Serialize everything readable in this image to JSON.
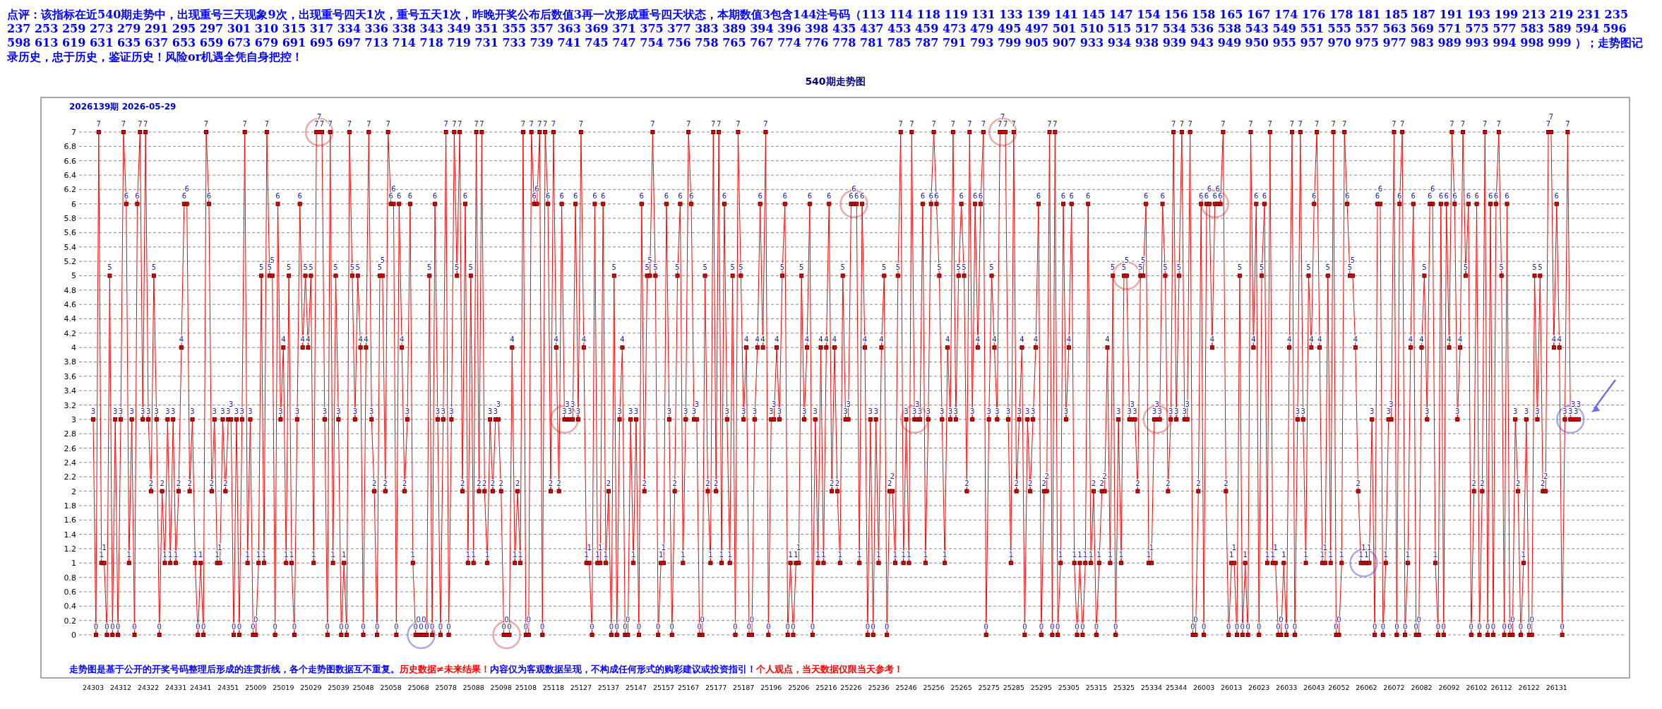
{
  "chart_data": {
    "type": "line",
    "title": "540期走势图",
    "subtitle": "2026139期  2026-05-29",
    "annotations": [
      "点评：该指标在近540期走势中，出现重号三天现象9次，出现重号四天1次，重号五天1次，昨晚开奖公布后数值3再一次形成重号四天状态，本期数值3包含144注号码（113 114 118 119 131 133 139 141 145 147 154 156 158 165 167 174 176 178 181 185 187 191 193 199 213 219 231 235 237 253 259 273 279 291 295 297 301 310 315 317 334 336 338 343 349 351 355 357 363 369 371 375 377 383 389 394 396 398 435 437 453 459 473 479 495 497 501 510 515 517 534 536 538 543 549 551 555 557 563 569 571 575 577 583 589 594 596 598 613 619 631 635 637 653 659 673 679 691 695 697 713 714 718 719 731 733 739 741 745 747 754 756 758 765 767 774 776 778 781 785 787 791 793 799 905 907 933 934 938 939 943 949 950 955 957 970 975 977 983 989 993 994 998 999 ）；走势图记录历史，忠于历史，鉴证历史！风险or机遇全凭自身把控！",
      "走势图是基于公开的开奖号码整理后形成的连贯折线，各个走势图数据互不重复。",
      "历史数据≠未来结果！",
      "内容仅为客观数据呈现，不构成任何形式的购彩建议或投资指引！",
      "个人观点，当天数据仅限当天参考！"
    ],
    "categories": [
      "24303",
      null,
      null,
      null,
      null,
      null,
      null,
      null,
      null,
      null,
      "24312",
      null,
      null,
      null,
      null,
      null,
      null,
      null,
      null,
      null,
      "24322",
      null,
      null,
      null,
      null,
      null,
      null,
      null,
      null,
      null,
      "24331",
      null,
      null,
      null,
      null,
      null,
      null,
      null,
      null,
      "24341",
      null,
      null,
      null,
      null,
      null,
      null,
      null,
      null,
      null,
      "24351",
      null,
      null,
      null,
      null,
      null,
      null,
      null,
      null,
      null,
      "25009",
      null,
      null,
      null,
      null,
      null,
      null,
      null,
      null,
      null,
      "25019",
      null,
      null,
      null,
      null,
      null,
      null,
      null,
      null,
      null,
      "25029",
      null,
      null,
      null,
      null,
      null,
      null,
      null,
      null,
      null,
      "25039",
      null,
      null,
      null,
      null,
      null,
      null,
      null,
      null,
      "25048",
      null,
      null,
      null,
      null,
      null,
      null,
      null,
      null,
      null,
      "25058",
      null,
      null,
      null,
      null,
      null,
      null,
      null,
      null,
      null,
      "25068",
      null,
      null,
      null,
      null,
      null,
      null,
      null,
      null,
      null,
      "25078",
      null,
      null,
      null,
      null,
      null,
      null,
      null,
      null,
      null,
      "25088",
      null,
      null,
      null,
      null,
      null,
      null,
      null,
      null,
      null,
      "25098",
      null,
      null,
      null,
      null,
      null,
      null,
      null,
      null,
      "25108",
      null,
      null,
      null,
      null,
      null,
      null,
      null,
      null,
      null,
      "25118",
      null,
      null,
      null,
      null,
      null,
      null,
      null,
      null,
      null,
      "25127",
      null,
      null,
      null,
      null,
      null,
      null,
      null,
      null,
      null,
      "25137",
      null,
      null,
      null,
      null,
      null,
      null,
      null,
      null,
      null,
      "25147",
      null,
      null,
      null,
      null,
      null,
      null,
      null,
      null,
      null,
      "25157",
      null,
      null,
      null,
      null,
      null,
      null,
      null,
      null,
      "25167",
      null,
      null,
      null,
      null,
      null,
      null,
      null,
      null,
      null,
      "25177",
      null,
      null,
      null,
      null,
      null,
      null,
      null,
      null,
      null,
      "25187",
      null,
      null,
      null,
      null,
      null,
      null,
      null,
      null,
      null,
      "25196",
      null,
      null,
      null,
      null,
      null,
      null,
      null,
      null,
      null,
      "25206",
      null,
      null,
      null,
      null,
      null,
      null,
      null,
      null,
      null,
      "25216",
      null,
      null,
      null,
      null,
      null,
      null,
      null,
      null,
      "25226",
      null,
      null,
      null,
      null,
      null,
      null,
      null,
      null,
      null,
      "25236",
      null,
      null,
      null,
      null,
      null,
      null,
      null,
      null,
      null,
      "25246",
      null,
      null,
      null,
      null,
      null,
      null,
      null,
      null,
      null,
      "25256",
      null,
      null,
      null,
      null,
      null,
      null,
      null,
      null,
      null,
      "25265",
      null,
      null,
      null,
      null,
      null,
      null,
      null,
      null,
      null,
      "25275",
      null,
      null,
      null,
      null,
      null,
      null,
      null,
      null,
      "25285",
      null,
      null,
      null,
      null,
      null,
      null,
      null,
      null,
      null,
      "25295",
      null,
      null,
      null,
      null,
      null,
      null,
      null,
      null,
      null,
      "25305",
      null,
      null,
      null,
      null,
      null,
      null,
      null,
      null,
      null,
      "25315",
      null,
      null,
      null,
      null,
      null,
      null,
      null,
      null,
      null,
      "25325",
      null,
      null,
      null,
      null,
      null,
      null,
      null,
      null,
      null,
      "25334",
      null,
      null,
      null,
      null,
      null,
      null,
      null,
      null,
      "25344",
      null,
      null,
      null,
      null,
      null,
      null,
      null,
      null,
      null,
      "26003",
      null,
      null,
      null,
      null,
      null,
      null,
      null,
      null,
      null,
      "26013",
      null,
      null,
      null,
      null,
      null,
      null,
      null,
      null,
      null,
      "26023",
      null,
      null,
      null,
      null,
      null,
      null,
      null,
      null,
      null,
      "26033",
      null,
      null,
      null,
      null,
      null,
      null,
      null,
      null,
      null,
      "26043",
      null,
      null,
      null,
      null,
      null,
      null,
      null,
      null,
      "26052",
      null,
      null,
      null,
      null,
      null,
      null,
      null,
      null,
      null,
      "26062",
      null,
      null,
      null,
      null,
      null,
      null,
      null,
      null,
      null,
      "26072",
      null,
      null,
      null,
      null,
      null,
      null,
      null,
      null,
      null,
      "26082",
      null,
      null,
      null,
      null,
      null,
      null,
      null,
      null,
      null,
      "26092",
      null,
      null,
      null,
      null,
      null,
      null,
      null,
      null,
      null,
      "26102",
      null,
      null,
      null,
      null,
      null,
      null,
      null,
      null,
      "26112",
      null,
      null,
      null,
      null,
      null,
      null,
      null,
      null,
      null,
      "26122",
      null,
      null,
      null,
      null,
      null,
      null,
      null,
      null,
      null,
      "26131",
      null,
      null,
      null,
      null,
      null,
      null,
      null,
      null
    ],
    "values": [
      3,
      0,
      7,
      1,
      1,
      0,
      5,
      0,
      3,
      0,
      3,
      7,
      6,
      1,
      3,
      0,
      6,
      7,
      3,
      7,
      3,
      2,
      5,
      3,
      0,
      2,
      1,
      3,
      1,
      3,
      1,
      2,
      4,
      6,
      6,
      2,
      3,
      1,
      0,
      1,
      0,
      7,
      6,
      2,
      3,
      1,
      1,
      3,
      2,
      3,
      3,
      0,
      3,
      0,
      3,
      7,
      1,
      3,
      0,
      0,
      1,
      5,
      1,
      7,
      5,
      5,
      0,
      6,
      3,
      4,
      1,
      5,
      1,
      0,
      3,
      6,
      4,
      5,
      4,
      5,
      1,
      7,
      7,
      7,
      3,
      0,
      7,
      1,
      5,
      3,
      0,
      1,
      0,
      7,
      5,
      3,
      5,
      4,
      0,
      4,
      7,
      3,
      2,
      0,
      5,
      5,
      2,
      7,
      6,
      6,
      0,
      6,
      4,
      2,
      3,
      6,
      1,
      0,
      0,
      0,
      0,
      0,
      5,
      0,
      6,
      3,
      0,
      3,
      7,
      0,
      3,
      7,
      5,
      7,
      2,
      6,
      1,
      5,
      1,
      7,
      2,
      7,
      2,
      1,
      3,
      2,
      3,
      3,
      2,
      0,
      0,
      0,
      4,
      1,
      2,
      1,
      7,
      0,
      0,
      7,
      6,
      6,
      7,
      0,
      7,
      6,
      2,
      7,
      4,
      2,
      6,
      3,
      3,
      3,
      3,
      6,
      3,
      7,
      4,
      1,
      1,
      0,
      6,
      1,
      1,
      6,
      1,
      2,
      0,
      5,
      0,
      3,
      4,
      0,
      0,
      3,
      1,
      3,
      0,
      6,
      2,
      5,
      5,
      7,
      5,
      0,
      1,
      1,
      6,
      3,
      0,
      2,
      5,
      6,
      1,
      3,
      7,
      6,
      3,
      3,
      0,
      0,
      5,
      2,
      1,
      7,
      2,
      7,
      1,
      6,
      3,
      1,
      5,
      0,
      7,
      5,
      3,
      4,
      0,
      0,
      3,
      4,
      6,
      4,
      7,
      0,
      3,
      3,
      4,
      3,
      5,
      6,
      0,
      1,
      0,
      1,
      1,
      5,
      3,
      4,
      6,
      0,
      3,
      1,
      4,
      1,
      4,
      6,
      2,
      4,
      2,
      1,
      5,
      3,
      3,
      6,
      6,
      6,
      1,
      6,
      4,
      0,
      3,
      0,
      3,
      1,
      4,
      5,
      0,
      2,
      2,
      1,
      5,
      7,
      1,
      3,
      1,
      7,
      3,
      3,
      3,
      6,
      1,
      3,
      6,
      7,
      6,
      5,
      3,
      1,
      4,
      3,
      7,
      3,
      5,
      6,
      5,
      2,
      7,
      3,
      6,
      4,
      6,
      7,
      0,
      3,
      5,
      4,
      3,
      7,
      7,
      7,
      3,
      1,
      7,
      2,
      3,
      4,
      0,
      3,
      2,
      3,
      4,
      6,
      0,
      2,
      2,
      7,
      0,
      7,
      0,
      1,
      6,
      3,
      4,
      6,
      1,
      0,
      1,
      0,
      1,
      6,
      1,
      2,
      0,
      1,
      2,
      2,
      4,
      1,
      5,
      0,
      3,
      1,
      5,
      5,
      3,
      3,
      3,
      2,
      5,
      5,
      6,
      1,
      1,
      3,
      3,
      3,
      6,
      5,
      2,
      3,
      7,
      3,
      5,
      7,
      3,
      3,
      7,
      0,
      0,
      2,
      6,
      0,
      6,
      6,
      4,
      6,
      6,
      6,
      7,
      2,
      0,
      1,
      1,
      0,
      5,
      0,
      1,
      0,
      7,
      4,
      6,
      0,
      5,
      6,
      1,
      7,
      1,
      1,
      0,
      0,
      1,
      0,
      4,
      7,
      0,
      3,
      7,
      3,
      1,
      5,
      4,
      6,
      7,
      4,
      1,
      1,
      5,
      1,
      7,
      0,
      0,
      1,
      7,
      6,
      5,
      5,
      4,
      2,
      1,
      1,
      1,
      1,
      3,
      0,
      6,
      6,
      0,
      1,
      3,
      3,
      7,
      0,
      6,
      7,
      0,
      1,
      4,
      6,
      0,
      0,
      4,
      5,
      3,
      6,
      6,
      1,
      0,
      6,
      0,
      6,
      4,
      7,
      6,
      3,
      4,
      7,
      5,
      6,
      0,
      2,
      6,
      0,
      2,
      7,
      0,
      6,
      0,
      6,
      7,
      5,
      0,
      6,
      0,
      0,
      3,
      2,
      0,
      1,
      3,
      0,
      0,
      5,
      3,
      5,
      2,
      2,
      7,
      7,
      4,
      6,
      4,
      0,
      3,
      7,
      3,
      3,
      3,
      3
    ],
    "color": "#ff0000",
    "ylim": [
      0,
      7
    ],
    "yticks": [
      0,
      0.2,
      0.4,
      0.6,
      0.8,
      1,
      1.2,
      1.4,
      1.6,
      1.8,
      2,
      2.2,
      2.4,
      2.6,
      2.8,
      3,
      3.2,
      3.4,
      3.6,
      3.8,
      4,
      4.2,
      4.4,
      4.6,
      4.8,
      5,
      5.2,
      5.4,
      5.6,
      5.8,
      6,
      6.2,
      6.4,
      6.6,
      6.8,
      7
    ],
    "grid": "y",
    "marker": "square",
    "data_labels": true
  }
}
